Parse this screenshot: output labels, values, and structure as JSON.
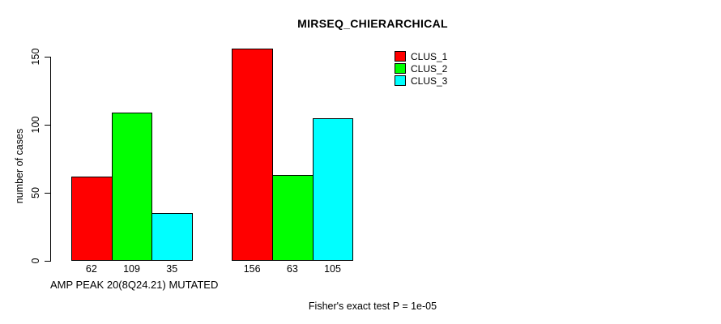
{
  "chart_data": {
    "type": "bar",
    "title": "MIRSEQ_CHIERARCHICAL",
    "ylabel": "number of cases",
    "xlabel": "AMP PEAK 20(8Q24.21) MUTATED",
    "footnote": "Fisher's exact test P = 1e-05",
    "series_names": [
      "CLUS_1",
      "CLUS_2",
      "CLUS_3"
    ],
    "colors": [
      "#FF0000",
      "#00FF00",
      "#00FFFF"
    ],
    "groups": [
      {
        "values": [
          62,
          109,
          35
        ]
      },
      {
        "values": [
          156,
          63,
          105
        ]
      }
    ],
    "bar_value_labels": [
      [
        "62",
        "109",
        "35"
      ],
      [
        "156",
        "63",
        "105"
      ]
    ],
    "yticks": [
      0,
      50,
      100,
      150
    ],
    "ylim": [
      0,
      157
    ],
    "grid": false,
    "legend_position": "top-right"
  }
}
